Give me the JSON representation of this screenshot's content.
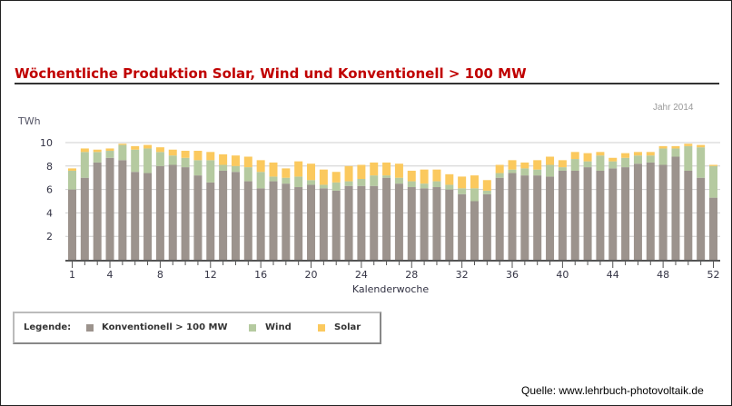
{
  "chart_data": {
    "type": "bar",
    "stacked": true,
    "title": "Wöchentliche Produktion Solar, Wind und Konventionell > 100 MW",
    "subtitle": "Jahr 2014",
    "ylabel": "TWh",
    "xlabel": "Kalenderwoche",
    "ylim": [
      0,
      11
    ],
    "yticks": [
      2,
      4,
      6,
      8,
      10
    ],
    "xtick_labels": [
      "1",
      "4",
      "8",
      "12",
      "16",
      "20",
      "24",
      "28",
      "32",
      "36",
      "40",
      "44",
      "48",
      "52"
    ],
    "weeks": [
      1,
      2,
      3,
      4,
      5,
      6,
      7,
      8,
      9,
      10,
      11,
      12,
      13,
      14,
      15,
      16,
      17,
      18,
      19,
      20,
      21,
      22,
      23,
      24,
      25,
      26,
      27,
      28,
      29,
      30,
      31,
      32,
      33,
      34,
      35,
      36,
      37,
      38,
      39,
      40,
      41,
      42,
      43,
      44,
      45,
      46,
      47,
      48,
      49,
      50,
      51,
      52
    ],
    "series": [
      {
        "name": "Konventionell > 100 MW",
        "color": "#9c938d",
        "values": [
          6.0,
          7.0,
          8.3,
          8.7,
          8.5,
          7.5,
          7.4,
          8.0,
          8.1,
          7.9,
          7.2,
          6.6,
          7.6,
          7.5,
          6.7,
          6.1,
          6.7,
          6.5,
          6.2,
          6.4,
          6.1,
          5.9,
          6.3,
          6.3,
          6.3,
          7.0,
          6.5,
          6.2,
          6.1,
          6.2,
          6.0,
          5.6,
          5.0,
          5.6,
          7.0,
          7.4,
          7.2,
          7.2,
          7.1,
          7.6,
          7.6,
          7.9,
          7.6,
          7.8,
          7.9,
          8.2,
          8.3,
          8.1,
          8.8,
          7.6,
          7.0,
          5.3
        ]
      },
      {
        "name": "Wind",
        "color": "#b5caa0",
        "values": [
          1.6,
          2.2,
          0.9,
          0.6,
          1.3,
          1.9,
          2.1,
          1.2,
          0.8,
          0.8,
          1.3,
          1.9,
          0.5,
          0.5,
          1.2,
          1.4,
          0.4,
          0.5,
          0.9,
          0.4,
          0.3,
          0.7,
          0.4,
          0.6,
          0.9,
          0.2,
          0.5,
          0.5,
          0.4,
          0.5,
          0.4,
          0.5,
          1.1,
          0.3,
          0.4,
          0.3,
          0.6,
          0.5,
          1.0,
          0.3,
          1.0,
          0.5,
          1.3,
          0.6,
          0.8,
          0.7,
          0.6,
          1.4,
          0.7,
          2.1,
          2.6,
          2.7
        ]
      },
      {
        "name": "Solar",
        "color": "#fbc95e",
        "values": [
          0.2,
          0.3,
          0.2,
          0.2,
          0.1,
          0.3,
          0.3,
          0.4,
          0.5,
          0.6,
          0.8,
          0.7,
          0.9,
          0.9,
          0.9,
          1.0,
          1.2,
          0.8,
          1.3,
          1.4,
          1.3,
          0.9,
          1.3,
          1.2,
          1.1,
          1.1,
          1.2,
          0.9,
          1.2,
          1.0,
          0.9,
          1.0,
          1.1,
          0.9,
          0.7,
          0.8,
          0.5,
          0.8,
          0.7,
          0.6,
          0.6,
          0.7,
          0.3,
          0.3,
          0.4,
          0.3,
          0.3,
          0.2,
          0.2,
          0.2,
          0.2,
          0.1
        ]
      }
    ],
    "grid": true,
    "legend_position": "bottom-left"
  },
  "legend": {
    "heading": "Legende:",
    "items": [
      "Konventionell > 100 MW",
      "Wind",
      "Solar"
    ]
  },
  "source": "Quelle: www.lehrbuch-photovoltaik.de"
}
